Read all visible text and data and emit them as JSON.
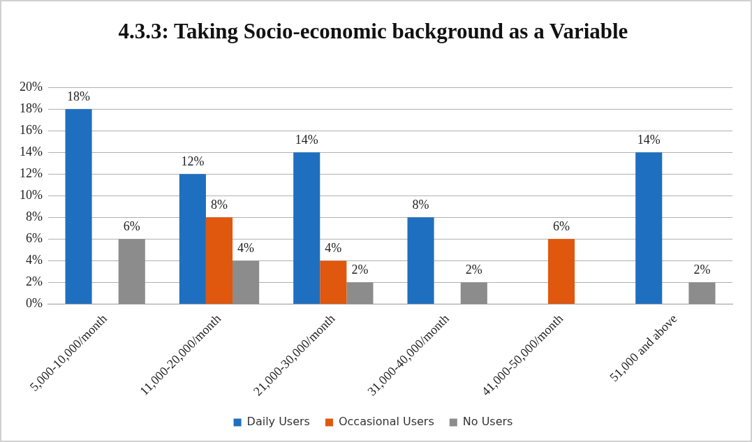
{
  "chart_data": {
    "type": "bar",
    "title": "4.3.3: Taking Socio-economic background as a Variable",
    "categories": [
      "5,000-10,000/month",
      "11,000-20,000/month",
      "21,000-30,000/month",
      "31,000-40,000/month",
      "41,000-50,000/month",
      "51,000 and above"
    ],
    "series": [
      {
        "name": "Daily Users",
        "color": "#1f6fc0",
        "values": [
          18,
          12,
          14,
          8,
          null,
          14
        ],
        "value_labels": [
          "18%",
          "12%",
          "14%",
          "8%",
          null,
          "14%"
        ]
      },
      {
        "name": "Occasional Users",
        "color": "#e0570e",
        "values": [
          null,
          8,
          4,
          null,
          6,
          null
        ],
        "value_labels": [
          null,
          "8%",
          "4%",
          null,
          "6%",
          null
        ]
      },
      {
        "name": "No Users",
        "color": "#8c8c8c",
        "values": [
          6,
          4,
          2,
          2,
          null,
          2
        ],
        "value_labels": [
          "6%",
          "4%",
          "2%",
          "2%",
          null,
          "2%"
        ]
      }
    ],
    "ylim": [
      0,
      20
    ],
    "yticks": [
      {
        "value": 0,
        "label": "0%"
      },
      {
        "value": 2,
        "label": "2%"
      },
      {
        "value": 4,
        "label": "4%"
      },
      {
        "value": 6,
        "label": "6%"
      },
      {
        "value": 8,
        "label": "8%"
      },
      {
        "value": 10,
        "label": "10%"
      },
      {
        "value": 12,
        "label": "12%"
      },
      {
        "value": 14,
        "label": "14%"
      },
      {
        "value": 16,
        "label": "16%"
      },
      {
        "value": 18,
        "label": "18%"
      },
      {
        "value": 20,
        "label": "20%"
      }
    ],
    "grid": "y",
    "legend": "bottom"
  }
}
